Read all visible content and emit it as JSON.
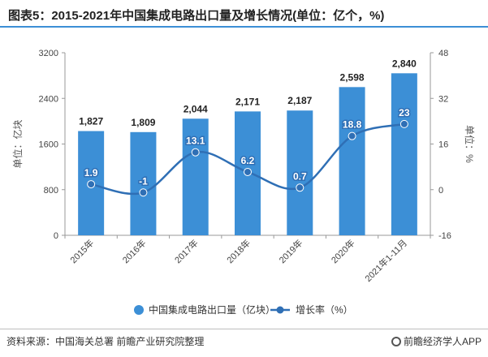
{
  "title": "图表5：2015-2021年中国集成电路出口量及增长情况(单位：亿个，%)",
  "footer": {
    "source": "资料来源：中国海关总署 前瞻产业研究院整理",
    "brand": "前瞻经济学人APP"
  },
  "colors": {
    "bar": "#3c8fd6",
    "line": "#2f6fb5",
    "axis": "#999999"
  },
  "chart_data": {
    "type": "bar",
    "categories": [
      "2015年",
      "2016年",
      "2017年",
      "2018年",
      "2019年",
      "2020年",
      "2021年1-11月"
    ],
    "series": [
      {
        "name": "中国集成电路出口量（亿块）",
        "type": "bar",
        "axis": "left",
        "values": [
          1827,
          1809,
          2044,
          2171,
          2187,
          2598,
          2840
        ],
        "labels": [
          "1,827",
          "1,809",
          "2,044",
          "2,171",
          "2,187",
          "2,598",
          "2,840"
        ]
      },
      {
        "name": "增长率（%）",
        "type": "line",
        "axis": "right",
        "values": [
          1.9,
          -1,
          13.1,
          6.2,
          0.7,
          18.8,
          23
        ],
        "labels": [
          "1.9",
          "-1",
          "13.1",
          "6.2",
          "0.7",
          "18.8",
          "23"
        ]
      }
    ],
    "ylabel": "单位：亿块",
    "y2label": "单位：%",
    "ylim": [
      0,
      3200
    ],
    "yticks": [
      0,
      800,
      1600,
      2400,
      3200
    ],
    "y2lim": [
      -16,
      48
    ],
    "y2ticks": [
      -16,
      0,
      16,
      32,
      48
    ],
    "legend_position": "bottom"
  }
}
